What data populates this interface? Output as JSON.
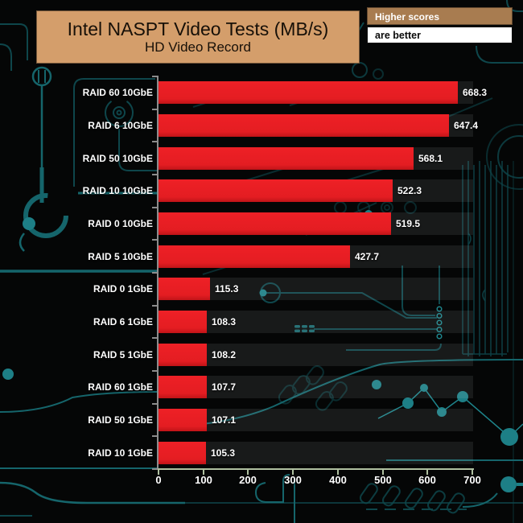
{
  "header": {
    "title": "Intel NASPT Video Tests (MB/s)",
    "subtitle": "HD Video Record",
    "note_title": "Higher scores",
    "note_body": "are better"
  },
  "chart_data": {
    "type": "bar",
    "orientation": "horizontal",
    "title": "Intel NASPT Video Tests (MB/s)",
    "subtitle": "HD Video Record",
    "categories": [
      "RAID 60 10GbE",
      "RAID 6 10GbE",
      "RAID 50 10GbE",
      "RAID 10 10GbE",
      "RAID 0 10GbE",
      "RAID 5 10GbE",
      "RAID 0 1GbE",
      "RAID 6 1GbE",
      "RAID 5 1GbE",
      "RAID 60 1GbE",
      "RAID 50 1GbE",
      "RAID 10 1GbE"
    ],
    "values": [
      668.3,
      647.4,
      568.1,
      522.3,
      519.5,
      427.7,
      115.3,
      108.3,
      108.2,
      107.7,
      107.1,
      105.3
    ],
    "xlabel": "",
    "ylabel": "",
    "xlim": [
      0,
      700
    ],
    "x_ticks": [
      0,
      100,
      200,
      300,
      400,
      500,
      600,
      700
    ],
    "grid": false,
    "legend_position": "none",
    "sorted": "descending"
  },
  "colors": {
    "background": "#050606",
    "circuit_teal": "#15656b",
    "title_box": "#d49e6b",
    "note_box": "#a87c50",
    "bar_red": "#e41d22",
    "row_track": "#1d1e1f",
    "x_axis": "#afc0a0",
    "y_axis": "#8c8c8c",
    "label_text": "#ffffff"
  }
}
